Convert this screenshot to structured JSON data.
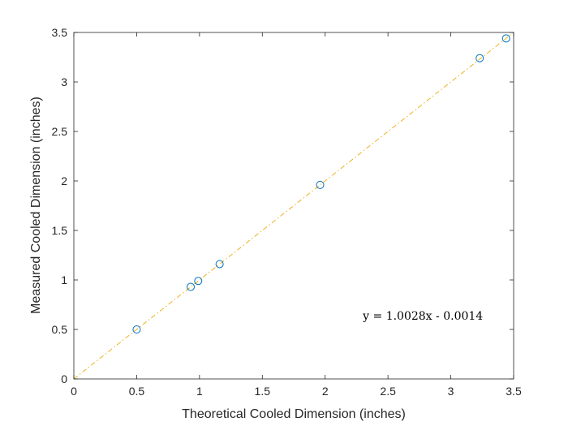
{
  "chart_data": {
    "type": "scatter",
    "title": "",
    "xlabel": "Theoretical Cooled Dimension (inches)",
    "ylabel": "Measured Cooled Dimension (inches)",
    "xlim": [
      0,
      3.5
    ],
    "ylim": [
      0,
      3.5
    ],
    "xticks": [
      0,
      0.5,
      1,
      1.5,
      2,
      2.5,
      3,
      3.5
    ],
    "yticks": [
      0,
      0.5,
      1,
      1.5,
      2,
      2.5,
      3,
      3.5
    ],
    "x_tick_labels": [
      "0",
      "0.5",
      "1",
      "1.5",
      "2",
      "2.5",
      "3",
      "3.5"
    ],
    "y_tick_labels": [
      "0",
      "0.5",
      "1",
      "1.5",
      "2",
      "2.5",
      "3",
      "3.5"
    ],
    "grid": false,
    "legend": "none",
    "series": [
      {
        "marker": "circle-open",
        "color": "#0072BD",
        "points": [
          {
            "x": 0.5,
            "y": 0.5
          },
          {
            "x": 0.93,
            "y": 0.93
          },
          {
            "x": 0.99,
            "y": 0.99
          },
          {
            "x": 1.16,
            "y": 1.16
          },
          {
            "x": 1.96,
            "y": 1.96
          },
          {
            "x": 3.23,
            "y": 3.24
          },
          {
            "x": 3.44,
            "y": 3.44
          }
        ]
      }
    ],
    "trendline": {
      "slope": 1.0028,
      "intercept": -0.0014,
      "color": "#EDB120",
      "style": "dash-dot",
      "x_range": [
        0,
        3.5
      ]
    },
    "annotation": {
      "text": "y = 1.0028x - 0.0014",
      "x": 2.3,
      "y": 0.6
    }
  }
}
